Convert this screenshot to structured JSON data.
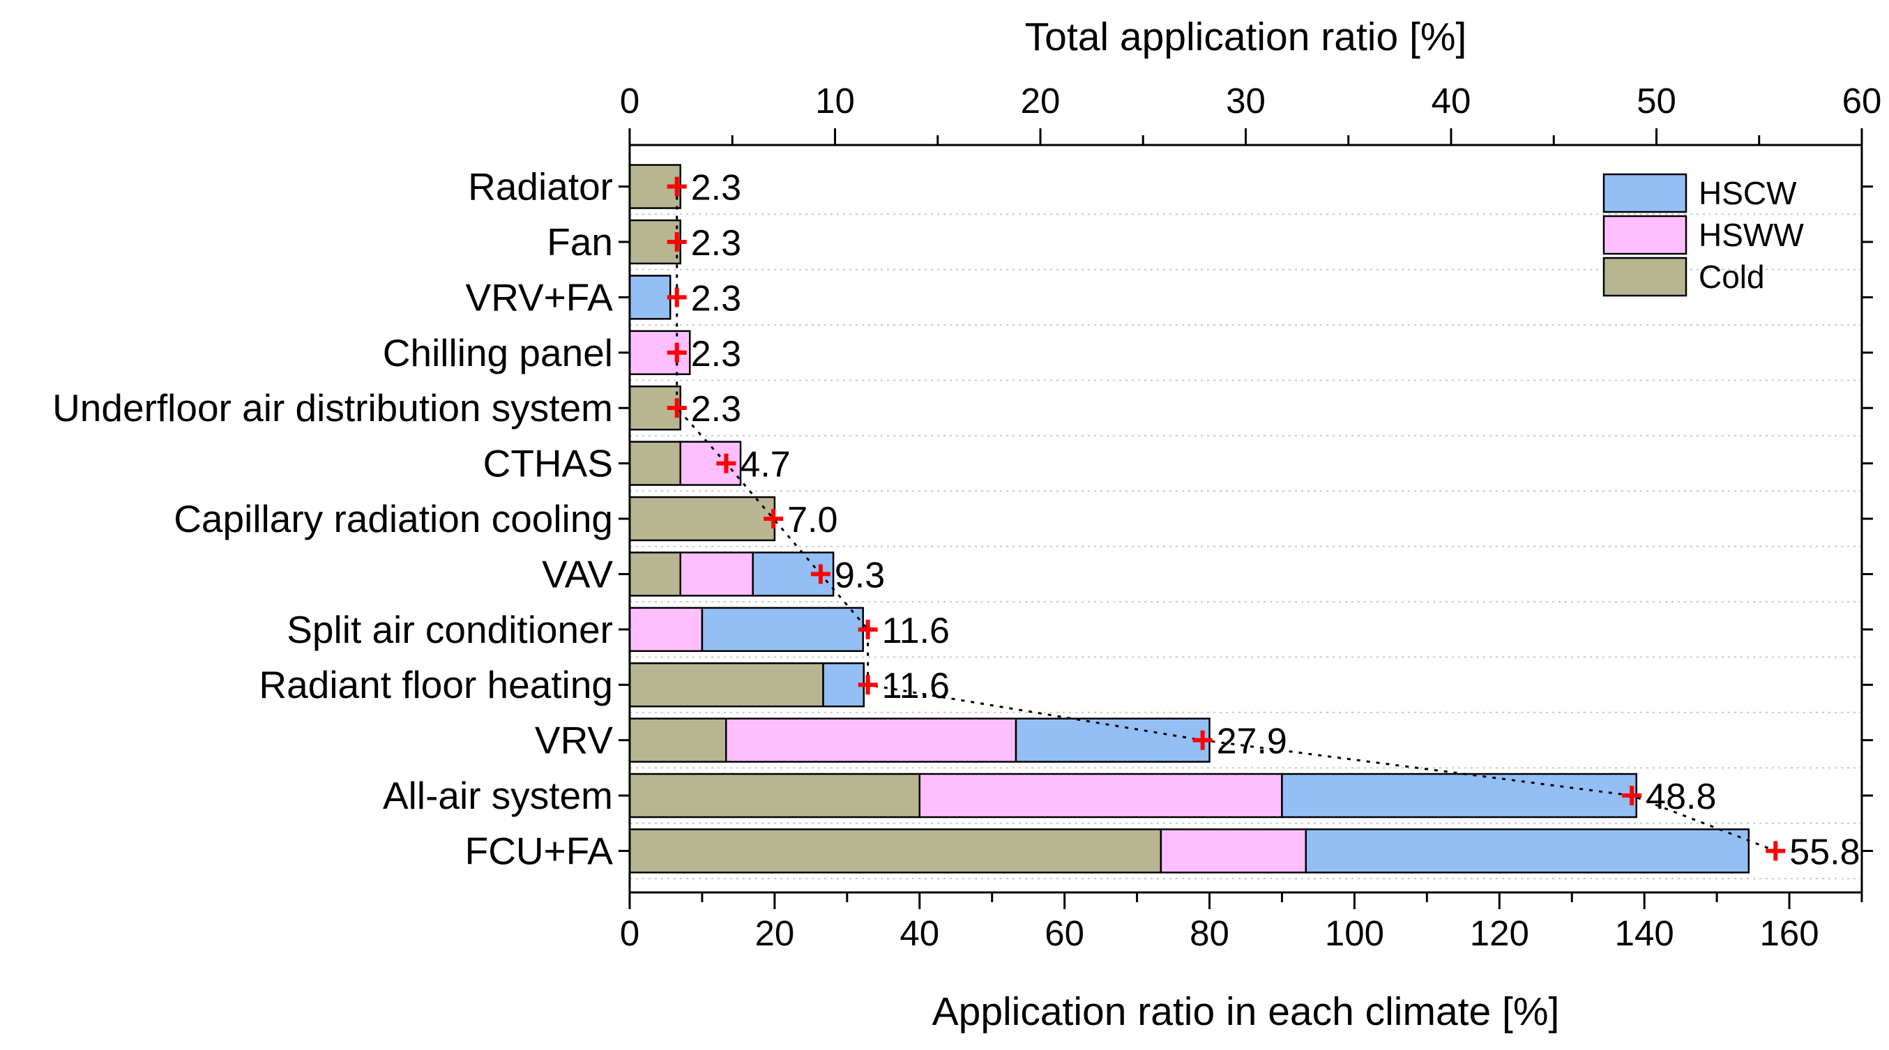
{
  "chart_data": {
    "type": "bar",
    "orientation": "horizontal",
    "stacked": true,
    "categories": [
      "Radiator",
      "Fan",
      "VRV+FA",
      "Chilling panel",
      "Underfloor air distribution system",
      "CTHAS",
      "Capillary radiation cooling",
      "VAV",
      "Split air conditioner",
      "Radiant floor heating",
      "VRV",
      "All-air system",
      "FCU+FA"
    ],
    "series": [
      {
        "name": "Cold",
        "color": "#b8b593",
        "values": [
          7,
          7,
          0,
          0,
          7,
          7,
          20,
          7,
          0,
          26.7,
          13.3,
          40,
          73.3
        ]
      },
      {
        "name": "HSWW",
        "color": "#ffbfff",
        "values": [
          0,
          0,
          0,
          8.3,
          0,
          8.3,
          0,
          10,
          10,
          0,
          40,
          50,
          20
        ]
      },
      {
        "name": "HSCW",
        "color": "#93bff4",
        "values": [
          0,
          0,
          5.6,
          0,
          0,
          0,
          0,
          11.1,
          22.2,
          5.6,
          26.7,
          48.9,
          61.1
        ]
      }
    ],
    "total_series": {
      "name": "Total application ratio",
      "marker": "+",
      "color": "#ff0000",
      "values": [
        2.3,
        2.3,
        2.3,
        2.3,
        2.3,
        4.7,
        7.0,
        9.3,
        11.6,
        11.6,
        27.9,
        48.8,
        55.8
      ],
      "labels": [
        "2.3",
        "2.3",
        "2.3",
        "2.3",
        "2.3",
        "4.7",
        "7.0",
        "9.3",
        "11.6",
        "11.6",
        "27.9",
        "48.8",
        "55.8"
      ]
    },
    "xlabel": "Application ratio in each climate [%]",
    "xlim": [
      0,
      170
    ],
    "xticks": [
      "0",
      "20",
      "40",
      "60",
      "80",
      "100",
      "120",
      "140",
      "160"
    ],
    "x2label": "Total application ratio [%]",
    "x2lim": [
      0,
      60
    ],
    "x2ticks": [
      "0",
      "10",
      "20",
      "30",
      "40",
      "50",
      "60"
    ],
    "legend": {
      "position": "top-right",
      "entries": [
        "HSCW",
        "HSWW",
        "Cold"
      ]
    },
    "grid": "horizontal-dotted"
  }
}
